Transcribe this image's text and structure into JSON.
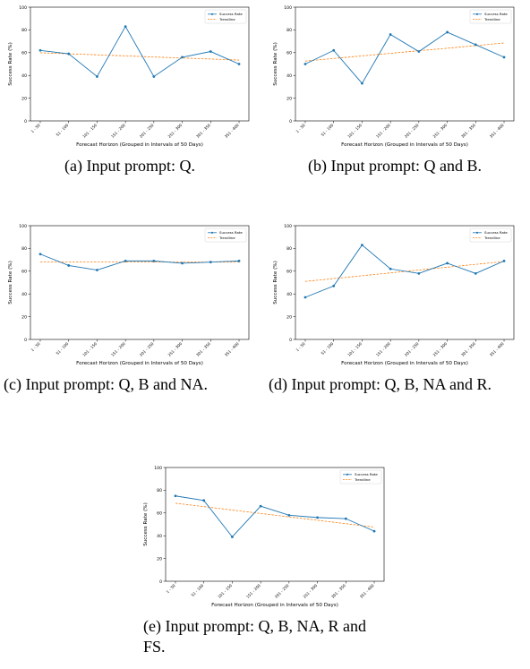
{
  "figures": [
    {
      "id": "a",
      "caption": "(a) Input prompt: Q."
    },
    {
      "id": "b",
      "caption": "(b) Input prompt: Q and B."
    },
    {
      "id": "c",
      "caption": "(c) Input prompt: Q, B and NA."
    },
    {
      "id": "d",
      "caption": "(d) Input prompt: Q, B, NA and R."
    },
    {
      "id": "e",
      "caption": "(e) Input prompt: Q, B, NA, R and FS."
    }
  ],
  "chart_data": [
    {
      "type": "line",
      "categories": [
        "1 - 50",
        "51 - 100",
        "101 - 150",
        "151 - 200",
        "201 - 250",
        "251 - 300",
        "301 - 350",
        "351 - 400"
      ],
      "series": [
        {
          "name": "Success Rate",
          "values": [
            62,
            59,
            39,
            83,
            39,
            56,
            61,
            50
          ],
          "color": "#1f77b4"
        },
        {
          "name": "Trendline",
          "values": [
            59.9,
            59.0,
            58.1,
            57.2,
            56.2,
            55.3,
            54.4,
            53.5
          ],
          "color": "#ff7f0e",
          "style": "dashed"
        }
      ],
      "xlabel": "Forecast Horizon (Grouped in Intervals of 50 Days)",
      "ylabel": "Success Rate (%)",
      "ylim": [
        0,
        100
      ],
      "yticks": [
        0,
        20,
        40,
        60,
        80,
        100
      ],
      "legend": "top-right",
      "grid": false
    },
    {
      "type": "line",
      "categories": [
        "1 - 50",
        "51 - 100",
        "101 - 150",
        "151 - 200",
        "201 - 250",
        "251 - 300",
        "301 - 350",
        "351 - 400"
      ],
      "series": [
        {
          "name": "Success Rate",
          "values": [
            50,
            62,
            33,
            76,
            61,
            78,
            67,
            56
          ],
          "color": "#1f77b4"
        },
        {
          "name": "Trendline",
          "values": [
            52.6,
            54.9,
            57.2,
            59.4,
            61.7,
            63.9,
            66.2,
            68.5
          ],
          "color": "#ff7f0e",
          "style": "dashed"
        }
      ],
      "xlabel": "Forecast Horizon (Grouped in Intervals of 50 Days)",
      "ylabel": "Success Rate (%)",
      "ylim": [
        0,
        100
      ],
      "yticks": [
        0,
        20,
        40,
        60,
        80,
        100
      ],
      "legend": "top-right",
      "grid": false
    },
    {
      "type": "line",
      "categories": [
        "1 - 50",
        "51 - 100",
        "101 - 150",
        "151 - 200",
        "201 - 250",
        "251 - 300",
        "301 - 350",
        "351 - 400"
      ],
      "series": [
        {
          "name": "Success Rate",
          "values": [
            75,
            65,
            61,
            69,
            69,
            67,
            68,
            69
          ],
          "color": "#1f77b4"
        },
        {
          "name": "Trendline",
          "values": [
            68.0,
            68.0,
            68.0,
            68.0,
            68.0,
            68.0,
            68.0,
            68.0
          ],
          "color": "#ff7f0e",
          "style": "dashed"
        }
      ],
      "xlabel": "Forecast Horizon (Grouped in Intervals of 50 Days)",
      "ylabel": "Success Rate (%)",
      "ylim": [
        0,
        100
      ],
      "yticks": [
        0,
        20,
        40,
        60,
        80,
        100
      ],
      "legend": "top-right",
      "grid": false
    },
    {
      "type": "line",
      "categories": [
        "1 - 50",
        "51 - 100",
        "101 - 150",
        "151 - 200",
        "201 - 250",
        "251 - 300",
        "301 - 350",
        "351 - 400"
      ],
      "series": [
        {
          "name": "Success Rate",
          "values": [
            37,
            47,
            83,
            62,
            58,
            67,
            58,
            69
          ],
          "color": "#1f77b4"
        },
        {
          "name": "Trendline",
          "values": [
            51.0,
            53.5,
            56.0,
            58.5,
            61.0,
            63.5,
            66.0,
            68.5
          ],
          "color": "#ff7f0e",
          "style": "dashed"
        }
      ],
      "xlabel": "Forecast Horizon (Grouped in Intervals of 50 Days)",
      "ylabel": "Success Rate (%)",
      "ylim": [
        0,
        100
      ],
      "yticks": [
        0,
        20,
        40,
        60,
        80,
        100
      ],
      "legend": "top-right",
      "grid": false
    },
    {
      "type": "line",
      "categories": [
        "1 - 50",
        "51 - 100",
        "101 - 150",
        "151 - 200",
        "201 - 250",
        "251 - 300",
        "301 - 350",
        "351 - 400"
      ],
      "series": [
        {
          "name": "Success Rate",
          "values": [
            75,
            71,
            39,
            66,
            58,
            56,
            55,
            44
          ],
          "color": "#1f77b4"
        },
        {
          "name": "Trendline",
          "values": [
            68.6,
            65.6,
            62.6,
            59.6,
            56.6,
            53.6,
            50.6,
            47.6
          ],
          "color": "#ff7f0e",
          "style": "dashed"
        }
      ],
      "xlabel": "Forecast Horizon (Grouped in Intervals of 50 Days)",
      "ylabel": "Success Rate (%)",
      "ylim": [
        0,
        100
      ],
      "yticks": [
        0,
        20,
        40,
        60,
        80,
        100
      ],
      "legend": "top-right",
      "grid": false
    }
  ]
}
